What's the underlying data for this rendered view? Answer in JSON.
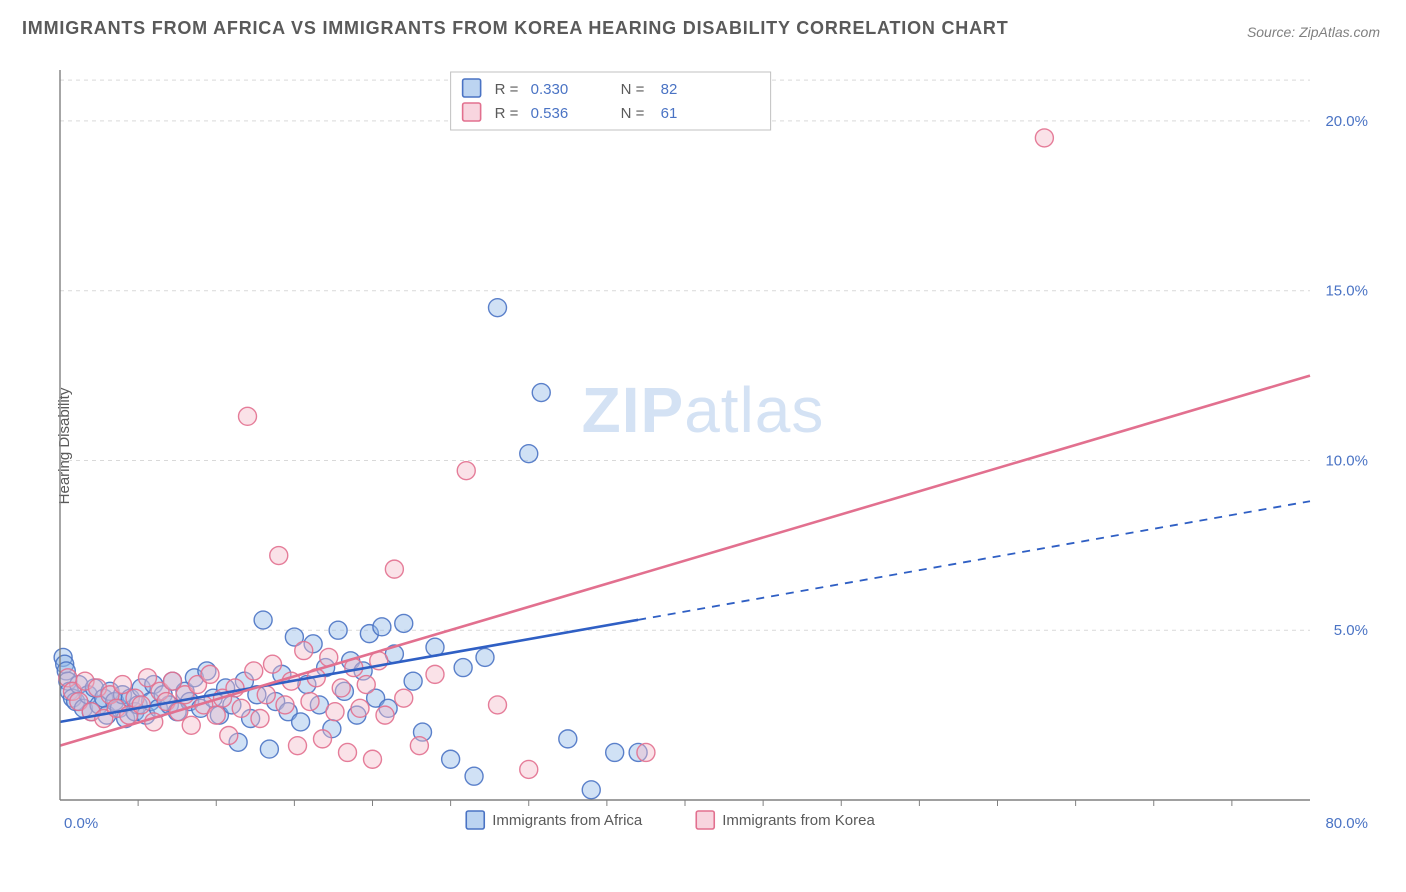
{
  "title": "IMMIGRANTS FROM AFRICA VS IMMIGRANTS FROM KOREA HEARING DISABILITY CORRELATION CHART",
  "source_prefix": "Source: ",
  "source_link": "ZipAtlas.com",
  "ylabel": "Hearing Disability",
  "watermark_bold": "ZIP",
  "watermark_rest": "atlas",
  "chart": {
    "type": "scatter",
    "background_color": "#ffffff",
    "grid_color": "#d9d9d9",
    "grid_dash": "4 4",
    "axis_color": "#808080",
    "xlim": [
      0,
      80
    ],
    "ylim": [
      0,
      21.5
    ],
    "ytick_values": [
      5.0,
      10.0,
      15.0,
      20.0
    ],
    "ytick_labels": [
      "5.0%",
      "10.0%",
      "15.0%",
      "20.0%"
    ],
    "xtick_min_label": "0.0%",
    "xtick_max_label": "80.0%",
    "marker_radius": 9,
    "marker_opacity": 0.42,
    "marker_stroke_opacity": 0.9,
    "line_width": 2.6,
    "series": [
      {
        "name": "Immigrants from Africa",
        "color_fill": "#8fb7e8",
        "color_stroke": "#4a73c4",
        "line_color": "#2f5fc4",
        "R": "0.330",
        "N": "82",
        "trend": {
          "x1": 0,
          "y1": 2.3,
          "x2": 80,
          "y2": 8.8,
          "solid_until_x": 37
        },
        "points": [
          [
            0.2,
            4.2
          ],
          [
            0.3,
            4.0
          ],
          [
            0.4,
            3.8
          ],
          [
            0.5,
            3.5
          ],
          [
            0.6,
            3.2
          ],
          [
            0.8,
            3.0
          ],
          [
            1.0,
            2.9
          ],
          [
            1.2,
            3.4
          ],
          [
            1.5,
            2.7
          ],
          [
            1.8,
            3.1
          ],
          [
            2.0,
            2.6
          ],
          [
            2.2,
            3.3
          ],
          [
            2.5,
            2.8
          ],
          [
            2.8,
            3.0
          ],
          [
            3.0,
            2.5
          ],
          [
            3.2,
            3.2
          ],
          [
            3.5,
            2.9
          ],
          [
            3.8,
            2.7
          ],
          [
            4.0,
            3.1
          ],
          [
            4.2,
            2.4
          ],
          [
            4.5,
            3.0
          ],
          [
            4.8,
            2.6
          ],
          [
            5.0,
            2.8
          ],
          [
            5.2,
            3.3
          ],
          [
            5.5,
            2.5
          ],
          [
            5.8,
            2.9
          ],
          [
            6.0,
            3.4
          ],
          [
            6.3,
            2.7
          ],
          [
            6.6,
            3.1
          ],
          [
            7.0,
            2.8
          ],
          [
            7.2,
            3.5
          ],
          [
            7.5,
            2.6
          ],
          [
            8.0,
            3.2
          ],
          [
            8.3,
            2.9
          ],
          [
            8.6,
            3.6
          ],
          [
            9.0,
            2.7
          ],
          [
            9.4,
            3.8
          ],
          [
            9.8,
            3.0
          ],
          [
            10.2,
            2.5
          ],
          [
            10.6,
            3.3
          ],
          [
            11.0,
            2.8
          ],
          [
            11.4,
            1.7
          ],
          [
            11.8,
            3.5
          ],
          [
            12.2,
            2.4
          ],
          [
            12.6,
            3.1
          ],
          [
            13.0,
            5.3
          ],
          [
            13.4,
            1.5
          ],
          [
            13.8,
            2.9
          ],
          [
            14.2,
            3.7
          ],
          [
            14.6,
            2.6
          ],
          [
            15.0,
            4.8
          ],
          [
            15.4,
            2.3
          ],
          [
            15.8,
            3.4
          ],
          [
            16.2,
            4.6
          ],
          [
            16.6,
            2.8
          ],
          [
            17.0,
            3.9
          ],
          [
            17.4,
            2.1
          ],
          [
            17.8,
            5.0
          ],
          [
            18.2,
            3.2
          ],
          [
            18.6,
            4.1
          ],
          [
            19.0,
            2.5
          ],
          [
            19.4,
            3.8
          ],
          [
            19.8,
            4.9
          ],
          [
            20.2,
            3.0
          ],
          [
            20.6,
            5.1
          ],
          [
            21.0,
            2.7
          ],
          [
            21.4,
            4.3
          ],
          [
            22.0,
            5.2
          ],
          [
            22.6,
            3.5
          ],
          [
            23.2,
            2.0
          ],
          [
            24.0,
            4.5
          ],
          [
            25.0,
            1.2
          ],
          [
            25.8,
            3.9
          ],
          [
            26.5,
            0.7
          ],
          [
            27.2,
            4.2
          ],
          [
            28.0,
            14.5
          ],
          [
            30.0,
            10.2
          ],
          [
            30.8,
            12.0
          ],
          [
            32.5,
            1.8
          ],
          [
            34.0,
            0.3
          ],
          [
            35.5,
            1.4
          ],
          [
            37.0,
            1.4
          ]
        ]
      },
      {
        "name": "Immigrants from Korea",
        "color_fill": "#f3b9c9",
        "color_stroke": "#e2708f",
        "line_color": "#e2708f",
        "R": "0.536",
        "N": "61",
        "trend": {
          "x1": 0,
          "y1": 1.6,
          "x2": 80,
          "y2": 12.5,
          "solid_until_x": 80
        },
        "points": [
          [
            0.5,
            3.6
          ],
          [
            0.8,
            3.2
          ],
          [
            1.2,
            2.9
          ],
          [
            1.6,
            3.5
          ],
          [
            2.0,
            2.6
          ],
          [
            2.4,
            3.3
          ],
          [
            2.8,
            2.4
          ],
          [
            3.2,
            3.1
          ],
          [
            3.6,
            2.7
          ],
          [
            4.0,
            3.4
          ],
          [
            4.4,
            2.5
          ],
          [
            4.8,
            3.0
          ],
          [
            5.2,
            2.8
          ],
          [
            5.6,
            3.6
          ],
          [
            6.0,
            2.3
          ],
          [
            6.4,
            3.2
          ],
          [
            6.8,
            2.9
          ],
          [
            7.2,
            3.5
          ],
          [
            7.6,
            2.6
          ],
          [
            8.0,
            3.1
          ],
          [
            8.4,
            2.2
          ],
          [
            8.8,
            3.4
          ],
          [
            9.2,
            2.8
          ],
          [
            9.6,
            3.7
          ],
          [
            10.0,
            2.5
          ],
          [
            10.4,
            3.0
          ],
          [
            10.8,
            1.9
          ],
          [
            11.2,
            3.3
          ],
          [
            11.6,
            2.7
          ],
          [
            12.0,
            11.3
          ],
          [
            12.4,
            3.8
          ],
          [
            12.8,
            2.4
          ],
          [
            13.2,
            3.1
          ],
          [
            13.6,
            4.0
          ],
          [
            14.0,
            7.2
          ],
          [
            14.4,
            2.8
          ],
          [
            14.8,
            3.5
          ],
          [
            15.2,
            1.6
          ],
          [
            15.6,
            4.4
          ],
          [
            16.0,
            2.9
          ],
          [
            16.4,
            3.6
          ],
          [
            16.8,
            1.8
          ],
          [
            17.2,
            4.2
          ],
          [
            17.6,
            2.6
          ],
          [
            18.0,
            3.3
          ],
          [
            18.4,
            1.4
          ],
          [
            18.8,
            3.9
          ],
          [
            19.2,
            2.7
          ],
          [
            19.6,
            3.4
          ],
          [
            20.0,
            1.2
          ],
          [
            20.4,
            4.1
          ],
          [
            20.8,
            2.5
          ],
          [
            21.4,
            6.8
          ],
          [
            22.0,
            3.0
          ],
          [
            23.0,
            1.6
          ],
          [
            24.0,
            3.7
          ],
          [
            26.0,
            9.7
          ],
          [
            28.0,
            2.8
          ],
          [
            30.0,
            0.9
          ],
          [
            37.5,
            1.4
          ],
          [
            63.0,
            19.5
          ]
        ]
      }
    ],
    "stats_box": {
      "border_color": "#c0c0c0",
      "bg_color": "#ffffff"
    },
    "bottom_legend": {
      "label_series1": "Immigrants from Africa",
      "label_series2": "Immigrants from Korea"
    }
  }
}
